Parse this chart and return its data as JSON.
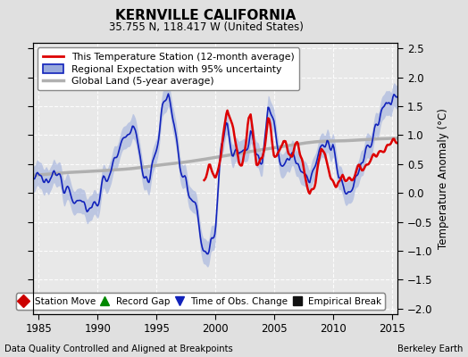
{
  "title": "KERNVILLE CALIFORNIA",
  "subtitle": "35.755 N, 118.417 W (United States)",
  "xlabel_left": "Data Quality Controlled and Aligned at Breakpoints",
  "xlabel_right": "Berkeley Earth",
  "ylabel": "Temperature Anomaly (°C)",
  "xlim": [
    1984.5,
    2015.5
  ],
  "ylim": [
    -2.1,
    2.6
  ],
  "yticks_left": [
    -2,
    -1.5,
    -1,
    -0.5,
    0,
    0.5,
    1,
    1.5,
    2,
    2.5
  ],
  "yticks_right": [
    -2,
    -1.5,
    -1,
    -0.5,
    0,
    0.5,
    1,
    1.5,
    2,
    2.5
  ],
  "xticks": [
    1985,
    1990,
    1995,
    2000,
    2005,
    2010,
    2015
  ],
  "bg_color": "#e0e0e0",
  "plot_bg_color": "#e8e8e8",
  "grid_color": "#ffffff",
  "station_color": "#dd0000",
  "regional_color": "#1122bb",
  "regional_fill_color": "#99aadd",
  "global_color": "#b0b0b0",
  "legend_line_items": [
    {
      "label": "This Temperature Station (12-month average)",
      "color": "#dd0000",
      "lw": 2
    },
    {
      "label": "Regional Expectation with 95% uncertainty",
      "color": "#1122bb",
      "fill": "#99aadd",
      "lw": 1.5
    },
    {
      "label": "Global Land (5-year average)",
      "color": "#b0b0b0",
      "lw": 3
    }
  ],
  "marker_items": [
    {
      "label": "Station Move",
      "color": "#cc0000",
      "marker": "D",
      "size": 7
    },
    {
      "label": "Record Gap",
      "color": "#008800",
      "marker": "^",
      "size": 7
    },
    {
      "label": "Time of Obs. Change",
      "color": "#1122bb",
      "marker": "v",
      "size": 7
    },
    {
      "label": "Empirical Break",
      "color": "#111111",
      "marker": "s",
      "size": 7
    }
  ]
}
